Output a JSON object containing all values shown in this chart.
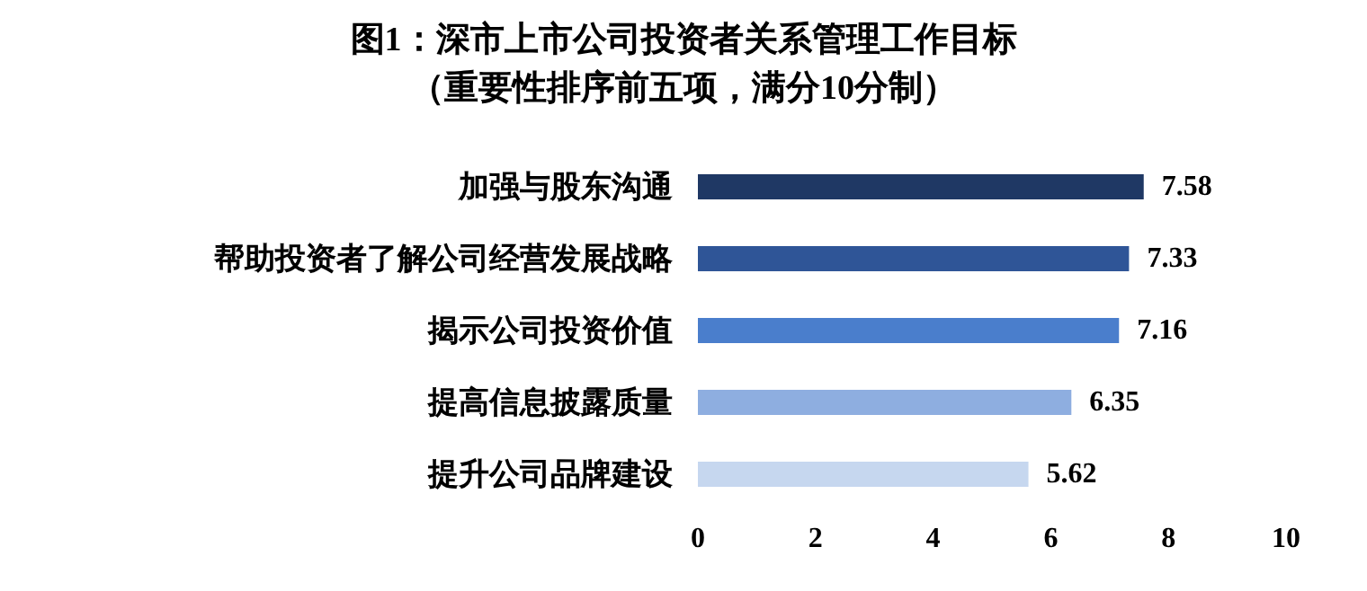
{
  "chart_data": {
    "type": "bar",
    "orientation": "horizontal",
    "title": "图1：深市上市公司投资者关系管理工作目标",
    "subtitle": "（重要性排序前五项，满分10分制）",
    "categories": [
      "加强与股东沟通",
      "帮助投资者了解公司经营发展战略",
      "揭示公司投资价值",
      "提高信息披露质量",
      "提升公司品牌建设"
    ],
    "values": [
      7.58,
      7.33,
      7.16,
      6.35,
      5.62
    ],
    "colors": [
      "#1f3864",
      "#2f5597",
      "#4a7ecc",
      "#8eaee0",
      "#c6d7ef"
    ],
    "xlim": [
      0,
      10
    ],
    "xticks": [
      0,
      2,
      4,
      6,
      8,
      10
    ],
    "grid": false,
    "data_labels": true
  }
}
